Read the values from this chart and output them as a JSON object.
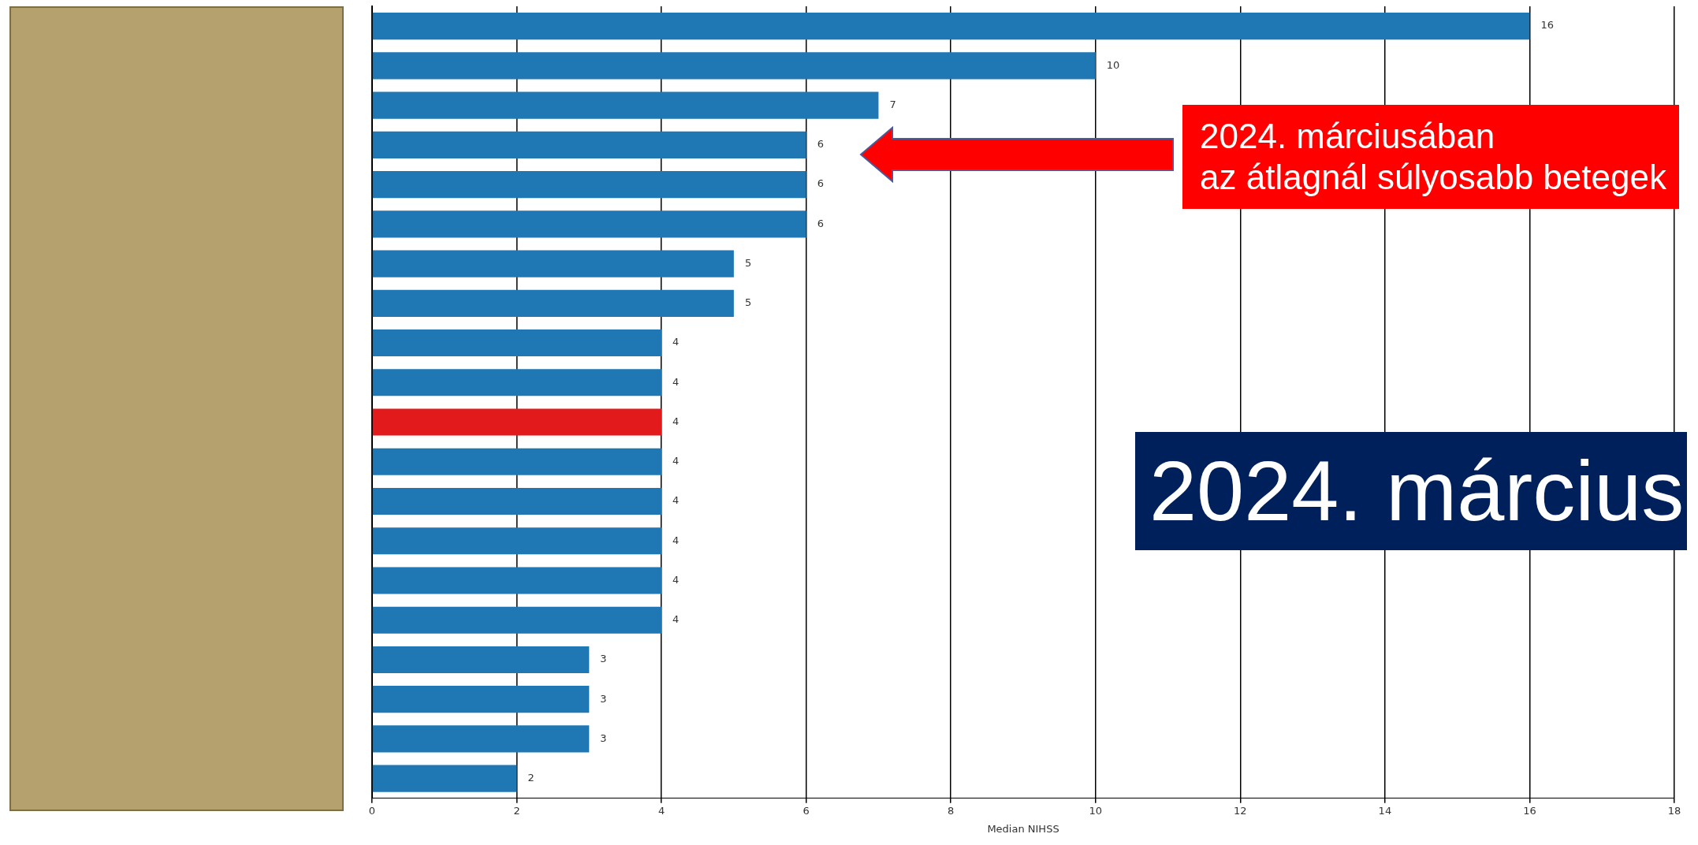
{
  "chart_data": {
    "type": "bar",
    "orientation": "horizontal",
    "title": "2024. március",
    "xlabel": "Median NIHSS",
    "categories": [
      null,
      null,
      null,
      null,
      null,
      null,
      null,
      null,
      null,
      null,
      null,
      null,
      null,
      null,
      null,
      null,
      null,
      null,
      null,
      null
    ],
    "values": [
      16,
      10,
      7,
      6,
      6,
      6,
      5,
      5,
      4,
      4,
      4,
      4,
      4,
      4,
      4,
      4,
      3,
      3,
      3,
      2
    ],
    "colors": [
      "#1f77b4",
      "#1f77b4",
      "#1f77b4",
      "#1f77b4",
      "#1f77b4",
      "#1f77b4",
      "#1f77b4",
      "#1f77b4",
      "#1f77b4",
      "#1f77b4",
      "#e31a1c",
      "#1f77b4",
      "#1f77b4",
      "#1f77b4",
      "#1f77b4",
      "#1f77b4",
      "#1f77b4",
      "#1f77b4",
      "#1f77b4",
      "#1f77b4"
    ],
    "xlim": [
      0,
      18
    ],
    "xticks": [
      0,
      2,
      4,
      6,
      8,
      10,
      12,
      14,
      16,
      18
    ],
    "grid": "x",
    "data_labels": true,
    "legend": false,
    "annotations": [
      "2024. márciusában\naz átlagnál súlyosabb betegek"
    ]
  }
}
